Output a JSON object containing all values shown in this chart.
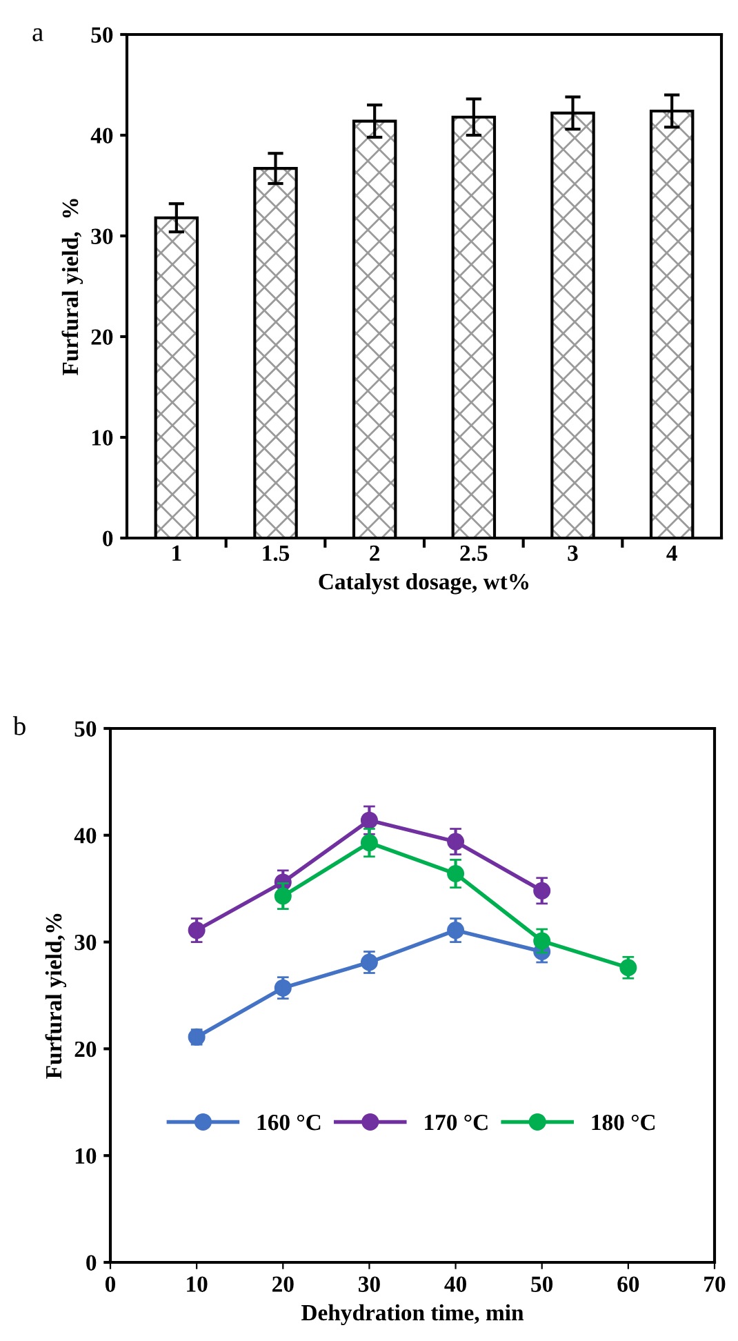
{
  "chart_data": [
    {
      "type": "bar",
      "annotations": [
        "a"
      ],
      "xlabel": "Catalyst dosage, wt%",
      "ylabel": "Furfural yield,  %",
      "categories": [
        "1",
        "1.5",
        "2",
        "2.5",
        "3",
        "4"
      ],
      "values": [
        31.8,
        36.7,
        41.4,
        41.8,
        42.2,
        42.4
      ],
      "errors": [
        1.4,
        1.5,
        1.6,
        1.8,
        1.6,
        1.6
      ],
      "ylim": [
        0,
        50
      ],
      "yticks": [
        0,
        10,
        20,
        30,
        40,
        50
      ],
      "grid": false,
      "legend": false
    },
    {
      "type": "line",
      "annotations": [
        "b"
      ],
      "xlabel": "Dehydration time, min",
      "ylabel": "Furfural yield,%",
      "series": [
        {
          "name": "160 °C",
          "color": "#4472c4",
          "x": [
            10,
            20,
            30,
            40,
            50
          ],
          "values": [
            21.1,
            25.7,
            28.1,
            31.1,
            29.1
          ],
          "errors": [
            0.7,
            1.0,
            1.0,
            1.1,
            1.0
          ]
        },
        {
          "name": "170 °C",
          "color": "#7030a0",
          "x": [
            10,
            20,
            30,
            40,
            50
          ],
          "values": [
            31.1,
            35.6,
            41.4,
            39.4,
            34.8
          ],
          "errors": [
            1.1,
            1.1,
            1.3,
            1.2,
            1.2
          ]
        },
        {
          "name": "180 °C",
          "color": "#00b050",
          "x": [
            20,
            30,
            40,
            50,
            60
          ],
          "values": [
            34.3,
            39.3,
            36.4,
            30.1,
            27.6
          ],
          "errors": [
            1.2,
            1.3,
            1.3,
            1.1,
            1.0
          ]
        }
      ],
      "xlim": [
        0,
        70
      ],
      "xticks": [
        0,
        10,
        20,
        30,
        40,
        50,
        60,
        70
      ],
      "ylim": [
        0,
        50
      ],
      "yticks": [
        0,
        10,
        20,
        30,
        40,
        50
      ],
      "marker": "circle",
      "line_style": "solid",
      "grid": false,
      "legend": "bottom"
    }
  ]
}
